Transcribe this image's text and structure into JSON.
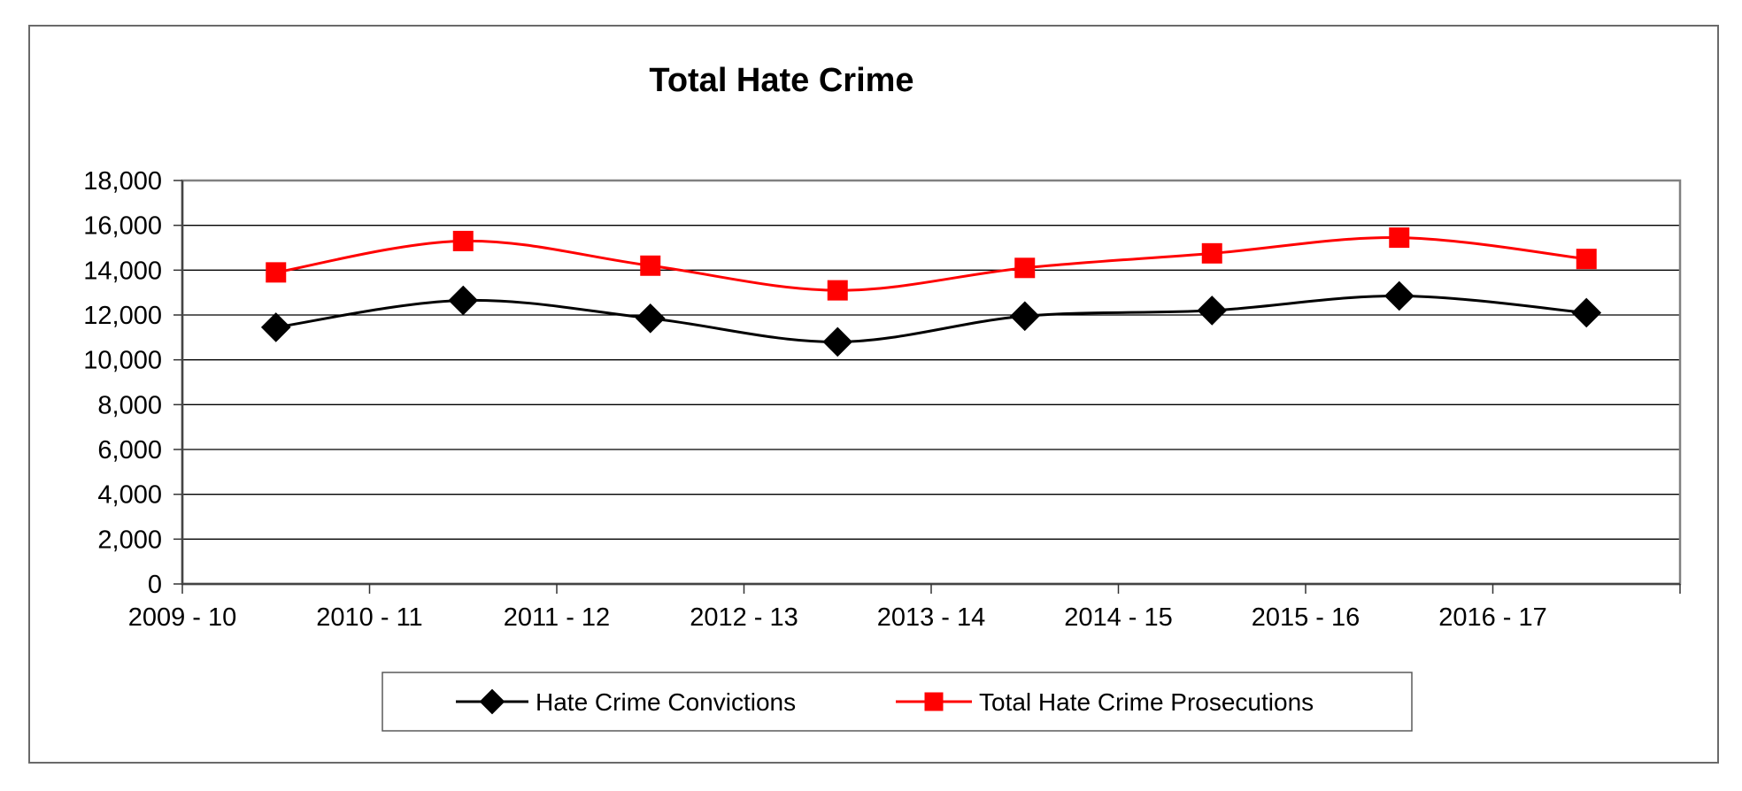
{
  "chart_data": {
    "type": "line",
    "title": "Total Hate Crime",
    "xlabel": "",
    "ylabel": "",
    "categories": [
      "2009 - 10",
      "2010 - 11",
      "2011 - 12",
      "2012 - 13",
      "2013 - 14",
      "2014 - 15",
      "2015 - 16",
      "2016 - 17"
    ],
    "series": [
      {
        "name": "Hate Crime Convictions",
        "color": "#000000",
        "marker": "diamond",
        "values": [
          11450,
          12650,
          11850,
          10800,
          11950,
          12200,
          12850,
          12100
        ]
      },
      {
        "name": "Total Hate Crime Prosecutions",
        "color": "#ff0000",
        "marker": "square",
        "values": [
          13900,
          15300,
          14200,
          13100,
          14100,
          14750,
          15450,
          14500
        ]
      }
    ],
    "ylim": [
      0,
      18000
    ],
    "yticks": [
      0,
      2000,
      4000,
      6000,
      8000,
      10000,
      12000,
      14000,
      16000,
      18000
    ],
    "ytick_labels": [
      "0",
      "2,000",
      "4,000",
      "6,000",
      "8,000",
      "10,000",
      "12,000",
      "14,000",
      "16,000",
      "18,000"
    ],
    "grid": true,
    "smooth": true,
    "legend_position": "bottom"
  }
}
